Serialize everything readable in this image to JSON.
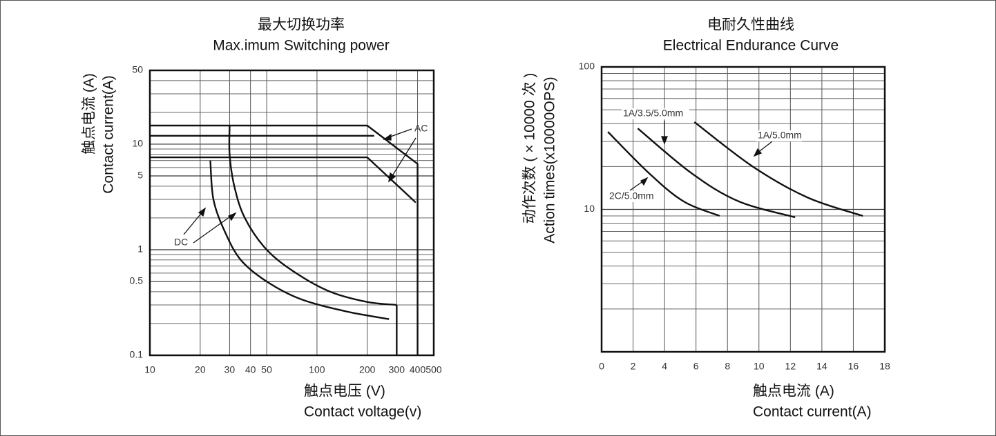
{
  "chart_data": [
    {
      "type": "line",
      "title": "最大切换功率",
      "subtitle": "Max.imum Switching power",
      "xlabel": [
        "触点电压 (V)",
        "Contact voltage(v)"
      ],
      "ylabel": [
        "触点电流 (A)",
        "Contact current(A)"
      ],
      "xscale": "log",
      "yscale": "log",
      "xlim": [
        10,
        500
      ],
      "ylim": [
        0.1,
        50
      ],
      "xticks": [
        10,
        20,
        30,
        40,
        50,
        100,
        200,
        300,
        400,
        500
      ],
      "yticks": [
        0.1,
        0.5,
        1,
        5,
        10,
        50
      ],
      "ygrid_minor": [
        0.2,
        0.3,
        0.4,
        0.6,
        0.7,
        0.8,
        0.9,
        2,
        3,
        4,
        6,
        7,
        8,
        9,
        20,
        30,
        40
      ],
      "grid": true,
      "annotations": [
        "AC",
        "DC"
      ],
      "series": [
        {
          "color": "#111111",
          "smooth": false,
          "x": [
            10,
            200,
            400,
            400
          ],
          "values": [
            15,
            15,
            6.5,
            0.1
          ]
        },
        {
          "color": "#111111",
          "smooth": false,
          "x": [
            10,
            220
          ],
          "values": [
            12,
            12
          ]
        },
        {
          "color": "#111111",
          "smooth": false,
          "x": [
            10,
            200,
            390
          ],
          "values": [
            7.5,
            7.5,
            2.8
          ]
        },
        {
          "color": "#111111",
          "smooth": true,
          "x": [
            23,
            24,
            28,
            35,
            50,
            80,
            150,
            270
          ],
          "values": [
            7,
            3,
            1.5,
            0.8,
            0.5,
            0.34,
            0.26,
            0.22
          ]
        },
        {
          "color": "#111111",
          "smooth": true,
          "x": [
            30,
            30,
            32,
            37,
            50,
            75,
            120,
            200,
            300
          ],
          "values": [
            15,
            8,
            4,
            2,
            1,
            0.6,
            0.4,
            0.32,
            0.3
          ]
        },
        {
          "color": "#111111",
          "smooth": false,
          "x": [
            300,
            300
          ],
          "values": [
            0.3,
            0.1
          ]
        }
      ]
    },
    {
      "type": "line",
      "title": "电耐久性曲线",
      "subtitle": "Electrical Endurance Curve",
      "xlabel": [
        "触点电流 (A)",
        "Contact current(A)"
      ],
      "ylabel": [
        "动作次数 ( × 10000 次 )",
        "Action times(x10000OPS)"
      ],
      "xscale": "linear",
      "yscale": "log",
      "xlim": [
        0,
        18
      ],
      "ylim": [
        1,
        100
      ],
      "xticks": [
        0,
        2,
        4,
        6,
        8,
        10,
        12,
        14,
        16,
        18
      ],
      "yticks": [
        10,
        100
      ],
      "ygrid_minor": [
        2,
        3,
        4,
        5,
        6,
        7,
        8,
        9,
        20,
        30,
        40,
        50,
        60,
        70,
        80,
        90
      ],
      "grid": true,
      "series": [
        {
          "name": "1A/3.5/5.0mm",
          "color": "#111111",
          "smooth": true,
          "x": [
            2.3,
            5.7,
            8.7,
            12.3
          ],
          "values": [
            37,
            18,
            11.4,
            8.8
          ]
        },
        {
          "name": "1A/5.0mm",
          "color": "#111111",
          "smooth": true,
          "x": [
            5.9,
            9.6,
            13.1,
            16.6
          ],
          "values": [
            41,
            20,
            12.1,
            9
          ]
        },
        {
          "name": "2C/5.0mm",
          "color": "#111111",
          "smooth": true,
          "x": [
            0.4,
            3,
            5.2,
            7.5
          ],
          "values": [
            35,
            18,
            11.4,
            9
          ]
        }
      ]
    }
  ]
}
